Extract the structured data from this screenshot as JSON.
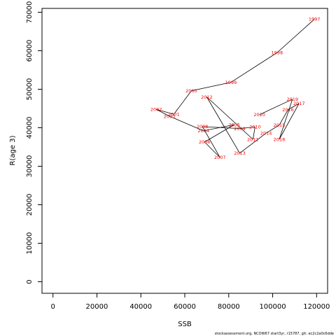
{
  "chart_data": {
    "type": "scatter",
    "xlabel": "SSB",
    "ylabel": "R(age 3)",
    "xlim": [
      -5000,
      125000
    ],
    "ylim": [
      -3000,
      71000
    ],
    "xticks": [
      0,
      20000,
      40000,
      60000,
      80000,
      100000,
      120000
    ],
    "yticks": [
      0,
      10000,
      20000,
      30000,
      40000,
      50000,
      60000,
      70000
    ],
    "xtick_labels": [
      "0",
      "20000",
      "40000",
      "60000",
      "80000",
      "100000",
      "120000"
    ],
    "ytick_labels": [
      "0",
      "10000",
      "20000",
      "30000",
      "40000",
      "50000",
      "60000",
      "70000"
    ],
    "connected_path": true,
    "grid": false,
    "point_label_color": "#ff0000",
    "line_color": "#000000",
    "points": [
      {
        "label": "1997",
        "x": 119000,
        "y": 68200
      },
      {
        "label": "1998",
        "x": 102000,
        "y": 59500
      },
      {
        "label": "1999",
        "x": 81000,
        "y": 51800
      },
      {
        "label": "2000",
        "x": 63000,
        "y": 49600
      },
      {
        "label": "2001",
        "x": 55000,
        "y": 43500
      },
      {
        "label": "2002",
        "x": 47000,
        "y": 44800
      },
      {
        "label": "2003",
        "x": 53000,
        "y": 43000
      },
      {
        "label": "2004",
        "x": 68500,
        "y": 39200
      },
      {
        "label": "2005",
        "x": 82500,
        "y": 40800
      },
      {
        "label": "2006",
        "x": 69000,
        "y": 36300
      },
      {
        "label": "2007",
        "x": 76000,
        "y": 32300
      },
      {
        "label": "2008",
        "x": 68000,
        "y": 40300
      },
      {
        "label": "2009",
        "x": 85000,
        "y": 39800
      },
      {
        "label": "2010",
        "x": 92000,
        "y": 40200
      },
      {
        "label": "2011",
        "x": 91000,
        "y": 37000
      },
      {
        "label": "2012",
        "x": 70000,
        "y": 48000
      },
      {
        "label": "2013",
        "x": 85000,
        "y": 33400
      },
      {
        "label": "2014",
        "x": 97000,
        "y": 38600
      },
      {
        "label": "2015",
        "x": 103000,
        "y": 40700
      },
      {
        "label": "2016",
        "x": 107000,
        "y": 44700
      },
      {
        "label": "2017",
        "x": 112000,
        "y": 46300
      },
      {
        "label": "2018",
        "x": 103000,
        "y": 37000
      },
      {
        "label": "2019",
        "x": 109000,
        "y": 47400
      },
      {
        "label": "2020",
        "x": 94000,
        "y": 43400
      }
    ],
    "footnote": "stockassessment.org, NCOW67 start3yr, r15787, git: ec2c2a0c6dde"
  }
}
